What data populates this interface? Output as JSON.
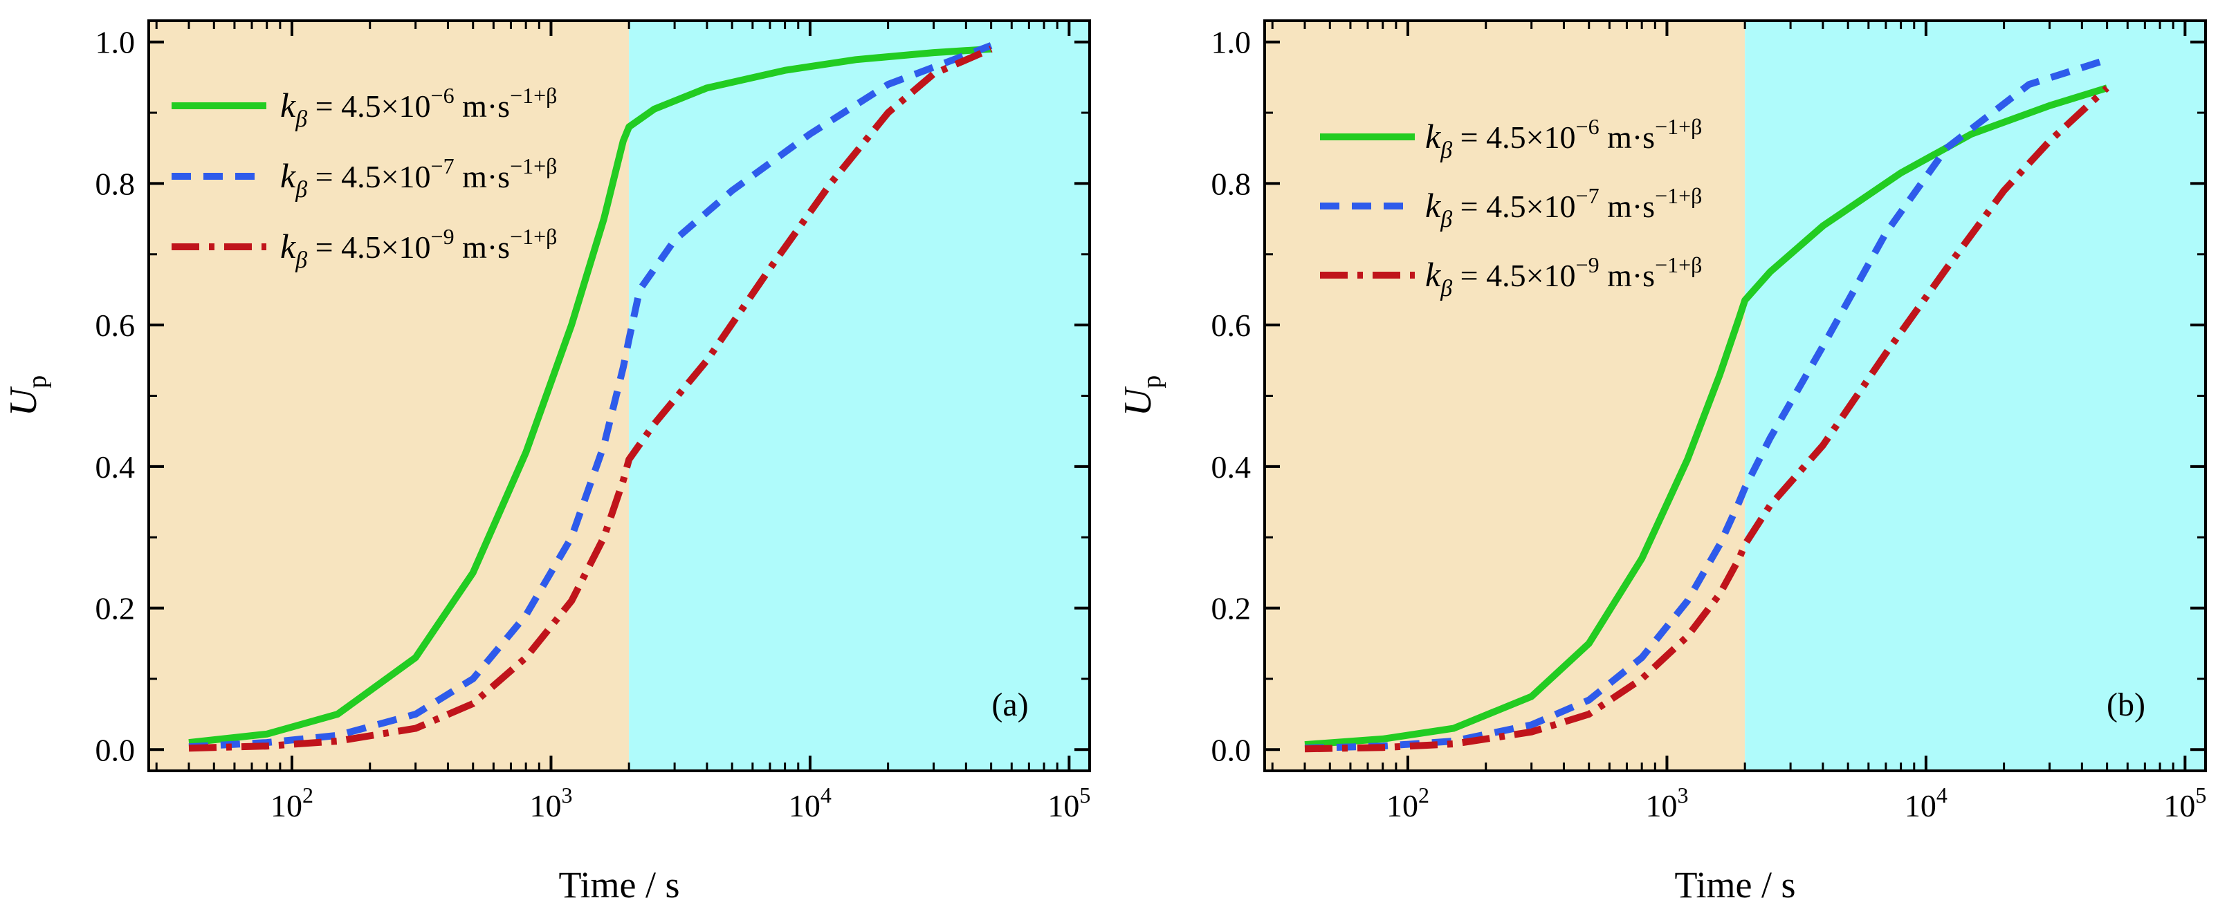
{
  "colors": {
    "phase_early": "#F7E4BF",
    "phase_late": "#AFFBFB",
    "series": [
      "#22CC22",
      "#2E5BEB",
      "#C0141B"
    ]
  },
  "chart_data": [
    {
      "type": "line",
      "panel_label": "(a)",
      "xscale": "log",
      "xlim": [
        28,
        120000
      ],
      "ylim": [
        -0.03,
        1.03
      ],
      "xlabel": "Time / s",
      "ylabel_main": "U",
      "ylabel_sub": "p",
      "xticks": [
        {
          "value": 100,
          "base": "10",
          "exp": "2"
        },
        {
          "value": 1000,
          "base": "10",
          "exp": "3"
        },
        {
          "value": 10000,
          "base": "10",
          "exp": "4"
        },
        {
          "value": 100000,
          "base": "10",
          "exp": "5"
        }
      ],
      "yticks": [
        "0.0",
        "0.2",
        "0.4",
        "0.6",
        "0.8",
        "1.0"
      ],
      "phase_boundary": 2000,
      "legend_position": "top-left",
      "series": [
        {
          "name": "kβ = 4.5×10⁻⁶ m·s⁻¹⁺ᵝ",
          "sym": "k",
          "sub": "β",
          "mid": " = 4.5×10",
          "exp1": "−6",
          "unit": " m·s",
          "exp2": "−1+β",
          "style": "solid",
          "points": [
            [
              40,
              0.01
            ],
            [
              80,
              0.022
            ],
            [
              150,
              0.05
            ],
            [
              300,
              0.13
            ],
            [
              500,
              0.25
            ],
            [
              800,
              0.42
            ],
            [
              1200,
              0.6
            ],
            [
              1600,
              0.75
            ],
            [
              1900,
              0.86
            ],
            [
              2000,
              0.88
            ],
            [
              2500,
              0.905
            ],
            [
              4000,
              0.935
            ],
            [
              8000,
              0.96
            ],
            [
              15000,
              0.975
            ],
            [
              30000,
              0.985
            ],
            [
              50000,
              0.99
            ]
          ]
        },
        {
          "name": "kβ = 4.5×10⁻⁷ m·s⁻¹⁺ᵝ",
          "sym": "k",
          "sub": "β",
          "mid": " = 4.5×10",
          "exp1": "−7",
          "unit": " m·s",
          "exp2": "−1+β",
          "style": "dashed",
          "points": [
            [
              40,
              0.004
            ],
            [
              80,
              0.01
            ],
            [
              150,
              0.02
            ],
            [
              300,
              0.05
            ],
            [
              500,
              0.1
            ],
            [
              800,
              0.19
            ],
            [
              1200,
              0.3
            ],
            [
              1600,
              0.43
            ],
            [
              1900,
              0.54
            ],
            [
              2000,
              0.58
            ],
            [
              2200,
              0.65
            ],
            [
              3000,
              0.72
            ],
            [
              5000,
              0.79
            ],
            [
              10000,
              0.87
            ],
            [
              20000,
              0.94
            ],
            [
              50000,
              0.995
            ]
          ]
        },
        {
          "name": "kβ = 4.5×10⁻⁹ m·s⁻¹⁺ᵝ",
          "sym": "k",
          "sub": "β",
          "mid": " = 4.5×10",
          "exp1": "−9",
          "unit": " m·s",
          "exp2": "−1+β",
          "style": "dashdot",
          "points": [
            [
              40,
              0.002
            ],
            [
              80,
              0.005
            ],
            [
              150,
              0.012
            ],
            [
              300,
              0.03
            ],
            [
              500,
              0.065
            ],
            [
              800,
              0.13
            ],
            [
              1200,
              0.21
            ],
            [
              1600,
              0.3
            ],
            [
              1900,
              0.38
            ],
            [
              2000,
              0.41
            ],
            [
              2500,
              0.46
            ],
            [
              4000,
              0.55
            ],
            [
              7000,
              0.68
            ],
            [
              12000,
              0.8
            ],
            [
              20000,
              0.9
            ],
            [
              30000,
              0.955
            ],
            [
              50000,
              0.99
            ]
          ]
        }
      ]
    },
    {
      "type": "line",
      "panel_label": "(b)",
      "xscale": "log",
      "xlim": [
        28,
        120000
      ],
      "ylim": [
        -0.03,
        1.03
      ],
      "xlabel": "Time / s",
      "ylabel_main": "U",
      "ylabel_sub": "p",
      "xticks": [
        {
          "value": 100,
          "base": "10",
          "exp": "2"
        },
        {
          "value": 1000,
          "base": "10",
          "exp": "3"
        },
        {
          "value": 10000,
          "base": "10",
          "exp": "4"
        },
        {
          "value": 100000,
          "base": "10",
          "exp": "5"
        }
      ],
      "yticks": [
        "0.0",
        "0.2",
        "0.4",
        "0.6",
        "0.8",
        "1.0"
      ],
      "phase_boundary": 2000,
      "legend_position": "top-left",
      "series": [
        {
          "name": "kβ = 4.5×10⁻⁶ m·s⁻¹⁺ᵝ",
          "sym": "k",
          "sub": "β",
          "mid": " = 4.5×10",
          "exp1": "−6",
          "unit": " m·s",
          "exp2": "−1+β",
          "style": "solid",
          "points": [
            [
              40,
              0.007
            ],
            [
              80,
              0.015
            ],
            [
              150,
              0.03
            ],
            [
              300,
              0.075
            ],
            [
              500,
              0.15
            ],
            [
              800,
              0.27
            ],
            [
              1200,
              0.41
            ],
            [
              1600,
              0.53
            ],
            [
              1900,
              0.61
            ],
            [
              2000,
              0.635
            ],
            [
              2500,
              0.675
            ],
            [
              4000,
              0.74
            ],
            [
              8000,
              0.815
            ],
            [
              15000,
              0.87
            ],
            [
              30000,
              0.91
            ],
            [
              50000,
              0.935
            ]
          ]
        },
        {
          "name": "kβ = 4.5×10⁻⁷ m·s⁻¹⁺ᵝ",
          "sym": "k",
          "sub": "β",
          "mid": " = 4.5×10",
          "exp1": "−7",
          "unit": " m·s",
          "exp2": "−1+β",
          "style": "dashed",
          "points": [
            [
              40,
              0.002
            ],
            [
              80,
              0.005
            ],
            [
              150,
              0.012
            ],
            [
              300,
              0.035
            ],
            [
              500,
              0.07
            ],
            [
              800,
              0.13
            ],
            [
              1200,
              0.21
            ],
            [
              1600,
              0.29
            ],
            [
              1900,
              0.35
            ],
            [
              2000,
              0.37
            ],
            [
              2500,
              0.44
            ],
            [
              4000,
              0.57
            ],
            [
              7000,
              0.73
            ],
            [
              12000,
              0.85
            ],
            [
              25000,
              0.94
            ],
            [
              50000,
              0.975
            ]
          ]
        },
        {
          "name": "kβ = 4.5×10⁻⁹ m·s⁻¹⁺ᵝ",
          "sym": "k",
          "sub": "β",
          "mid": " = 4.5×10",
          "exp1": "−9",
          "unit": " m·s",
          "exp2": "−1+β",
          "style": "dashdot",
          "points": [
            [
              40,
              0.001
            ],
            [
              80,
              0.003
            ],
            [
              150,
              0.008
            ],
            [
              300,
              0.025
            ],
            [
              500,
              0.05
            ],
            [
              800,
              0.1
            ],
            [
              1200,
              0.16
            ],
            [
              1600,
              0.22
            ],
            [
              1900,
              0.27
            ],
            [
              2000,
              0.29
            ],
            [
              2500,
              0.345
            ],
            [
              4000,
              0.43
            ],
            [
              7000,
              0.56
            ],
            [
              12000,
              0.68
            ],
            [
              20000,
              0.79
            ],
            [
              30000,
              0.86
            ],
            [
              50000,
              0.935
            ]
          ]
        }
      ]
    }
  ]
}
